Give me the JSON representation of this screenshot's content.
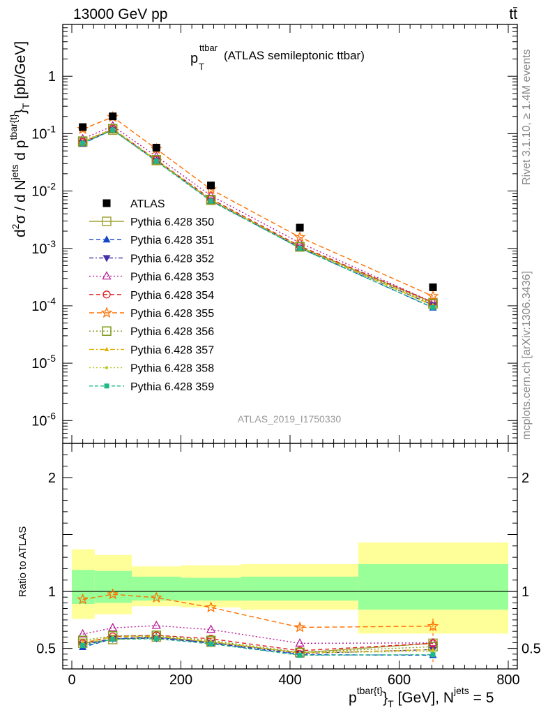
{
  "header": {
    "left": "13000 GeV pp",
    "right": "tt̄"
  },
  "title": {
    "main": "p",
    "sup": "ttbar",
    "sub": "T",
    "rest": " (ATLAS semileptonic ttbar)"
  },
  "side": {
    "top": "Rivet 3.1.10, ≥ 1.4M events",
    "bottom": "mcplots.cern.ch [arXiv:1306.3436]"
  },
  "analysis_label": "ATLAS_2019_I1750330",
  "ylabel_main": "d²σ / d Nʲᵉᵗˢ d pᵀ [pb/GeV]",
  "ylabel_main_parts": {
    "a": "d",
    "b": "2",
    "c": "σ  /  d N",
    "d": "jets",
    "e": " d p",
    "f": "tbar{t}",
    "g": "}",
    "h": "T",
    "i": " [pb/GeV]"
  },
  "ylabel_ratio": "Ratio to ATLAS",
  "xlabel_parts": {
    "a": "p",
    "b": "tbar{t}",
    "c": "}",
    "d": "T",
    "e": " [GeV], N",
    "f": "jets",
    "g": " = 5"
  },
  "chart_data": {
    "type": "scatter",
    "title": "p_T^ttbar (ATLAS semileptonic ttbar)",
    "xlabel": "p_T^{tbar{t}} [GeV], N^jets = 5",
    "ylabel": "d^2σ / d N^jets d p_T^{tbar{t}} [pb/GeV]",
    "ylabel_ratio": "Ratio to ATLAS",
    "xlim": [
      -20,
      810
    ],
    "ylim": [
      4e-07,
      8
    ],
    "ylim_ratio": [
      0.32,
      2.3
    ],
    "yscale": "log",
    "legend_position": "left-middle",
    "x_ticks": [
      "0",
      "200",
      "400",
      "600",
      "800"
    ],
    "y_ticks_main": [
      "10^-6",
      "10^-5",
      "10^-4",
      "10^-3",
      "10^-2",
      "10^-1",
      "1"
    ],
    "y_ticks_ratio": [
      "0.5",
      "1",
      "2"
    ],
    "x": [
      20,
      75,
      155,
      255,
      418,
      662
    ],
    "bin_edges": [
      0,
      42,
      110,
      200,
      310,
      525,
      800
    ],
    "data": {
      "name": "ATLAS",
      "values": [
        0.13,
        0.2,
        0.057,
        0.0125,
        0.0023,
        0.00021
      ]
    },
    "band_outer": [
      [
        0.76,
        1.37
      ],
      [
        0.8,
        1.32
      ],
      [
        0.87,
        1.22
      ],
      [
        0.86,
        1.23
      ],
      [
        0.84,
        1.24
      ],
      [
        0.63,
        1.43
      ],
      [
        0.63,
        1.43
      ]
    ],
    "band_inner": [
      [
        0.89,
        1.19
      ],
      [
        0.9,
        1.18
      ],
      [
        0.92,
        1.13
      ],
      [
        0.92,
        1.12
      ],
      [
        0.92,
        1.13
      ],
      [
        0.84,
        1.24
      ],
      [
        0.84,
        1.24
      ]
    ],
    "series": [
      {
        "name": "Pythia 6.428 350",
        "color": "#a3a33a",
        "dash": "",
        "marker": "square-open",
        "values": [
          0.071,
          0.115,
          0.034,
          0.0069,
          0.00106,
          0.000114
        ],
        "ratio": [
          0.545,
          0.578,
          0.6,
          0.555,
          0.462,
          0.545
        ]
      },
      {
        "name": "Pythia 6.428 351",
        "color": "#1446c8",
        "dash": "6,4",
        "marker": "triangle-up",
        "values": [
          0.067,
          0.117,
          0.034,
          0.0068,
          0.00102,
          9.25e-05
        ],
        "ratio": [
          0.51,
          0.585,
          0.6,
          0.545,
          0.445,
          0.44
        ]
      },
      {
        "name": "Pythia 6.428 352",
        "color": "#4630a8",
        "dash": "6,3,2,3",
        "marker": "triangle-down",
        "values": [
          0.07,
          0.117,
          0.034,
          0.0069,
          0.00104,
          0.000103
        ],
        "ratio": [
          0.535,
          0.585,
          0.59,
          0.55,
          0.455,
          0.49
        ]
      },
      {
        "name": "Pythia 6.428 353",
        "color": "#b8209a",
        "dash": "2,3",
        "marker": "triangle-open",
        "values": [
          0.081,
          0.136,
          0.04,
          0.0083,
          0.00125,
          0.000115
        ],
        "ratio": [
          0.625,
          0.68,
          0.7,
          0.665,
          0.545,
          0.548
        ]
      },
      {
        "name": "Pythia 6.428 354",
        "color": "#e01e1e",
        "dash": "6,4",
        "marker": "circle-open",
        "values": [
          0.071,
          0.121,
          0.035,
          0.0073,
          0.0011,
          0.000115
        ],
        "ratio": [
          0.545,
          0.605,
          0.615,
          0.585,
          0.48,
          0.545
        ]
      },
      {
        "name": "Pythia 6.428 355",
        "color": "#ff7000",
        "dash": "7,4",
        "marker": "star-open",
        "values": [
          0.12,
          0.195,
          0.054,
          0.0107,
          0.00157,
          0.000147
        ],
        "ratio": [
          0.93,
          0.975,
          0.945,
          0.86,
          0.685,
          0.695
        ]
      },
      {
        "name": "Pythia 6.428 356",
        "color": "#7c9a18",
        "dash": "2,3",
        "marker": "square-open",
        "values": [
          0.074,
          0.122,
          0.035,
          0.0071,
          0.00107,
          0.000108
        ],
        "ratio": [
          0.57,
          0.61,
          0.615,
          0.57,
          0.465,
          0.515
        ]
      },
      {
        "name": "Pythia 6.428 357",
        "color": "#e0b000",
        "dash": "7,3,2,3",
        "marker": "triangle-small",
        "values": [
          0.072,
          0.12,
          0.034,
          0.007,
          0.00106,
          0.000103
        ],
        "ratio": [
          0.555,
          0.6,
          0.605,
          0.56,
          0.46,
          0.49
        ]
      },
      {
        "name": "Pythia 6.428 358",
        "color": "#b8c820",
        "dash": "2,3",
        "marker": "dot",
        "values": [
          0.07,
          0.12,
          0.035,
          0.007,
          0.00105,
          0.0001
        ],
        "ratio": [
          0.545,
          0.598,
          0.61,
          0.56,
          0.46,
          0.475
        ]
      },
      {
        "name": "Pythia 6.428 359",
        "color": "#20b888",
        "dash": "5,3",
        "marker": "square",
        "values": [
          0.068,
          0.116,
          0.033,
          0.0067,
          0.00101,
          9.35e-05
        ],
        "ratio": [
          0.525,
          0.58,
          0.585,
          0.54,
          0.44,
          0.445
        ]
      }
    ]
  }
}
